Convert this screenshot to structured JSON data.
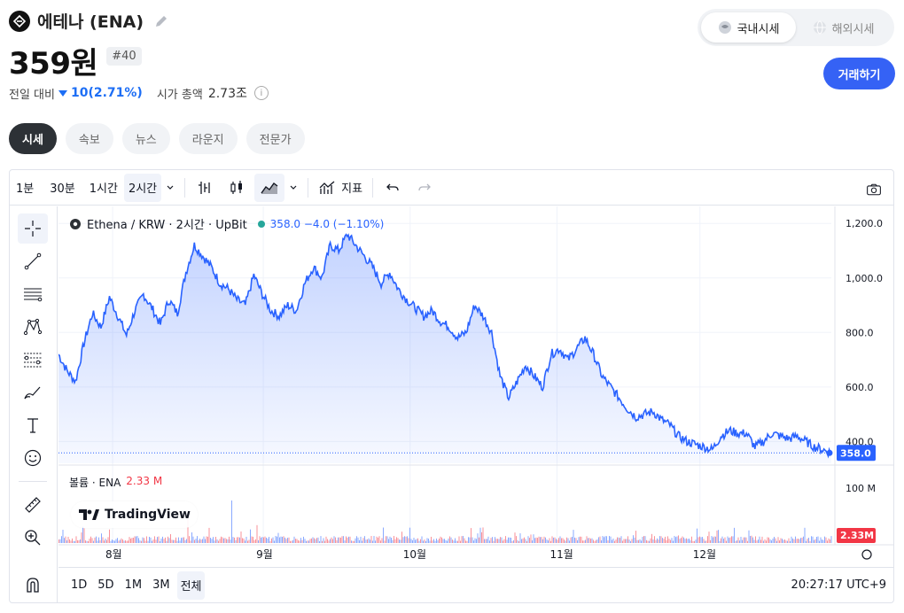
{
  "header": {
    "coin_name": "에테나 (ENA)",
    "price": "359원",
    "rank": "#40",
    "change_label": "전일 대비",
    "change_value": "10(2.71%)",
    "mcap_label": "시가 총액",
    "mcap_value": "2.73조",
    "info_icon": "i"
  },
  "market_toggle": {
    "domestic": "국내시세",
    "overseas": "해외시세"
  },
  "trade_button": "거래하기",
  "tabs": [
    {
      "label": "시세"
    },
    {
      "label": "속보"
    },
    {
      "label": "뉴스"
    },
    {
      "label": "라운지"
    },
    {
      "label": "전문가"
    }
  ],
  "toolbar": {
    "intervals": [
      "1분",
      "30분",
      "1시간",
      "2시간"
    ],
    "indicators_label": "지표"
  },
  "legend": {
    "symbol": "Ethena / KRW · 2시간 · UpBit",
    "values": "358.0  −4.0 (−1.10%)"
  },
  "volume_legend": {
    "label": "볼륨 · ENA",
    "value": "2.33 M"
  },
  "tradingview_label": "TradingView",
  "ranges": [
    "1D",
    "5D",
    "1M",
    "3M",
    "전체"
  ],
  "clock": "20:27:17 UTC+9",
  "colors": {
    "line": "#2962ff",
    "accent": "#3562f5",
    "up": "#f23645",
    "down": "#1d6ef5"
  },
  "chart_data": {
    "type": "area",
    "x_tick_labels": [
      "8월",
      "9월",
      "10월",
      "11월",
      "12월"
    ],
    "y_tick_labels": [
      "1,200.0",
      "1,000.0",
      "800.0",
      "600.0",
      "400.0"
    ],
    "ylim": [
      320,
      1230
    ],
    "last_price_label": "358.0",
    "volume_axis_label": "100 M",
    "volume_last_label": "2.33M",
    "series": [
      {
        "values": [
          720,
          660,
          620,
          760,
          870,
          820,
          930,
          860,
          790,
          880,
          940,
          890,
          830,
          920,
          870,
          1020,
          1120,
          1080,
          1040,
          980,
          960,
          920,
          900,
          1010,
          940,
          880,
          860,
          900,
          880,
          980,
          1040,
          1000,
          1120,
          1100,
          1160,
          1120,
          1080,
          1040,
          980,
          1020,
          960,
          920,
          890,
          860,
          880,
          840,
          820,
          780,
          800,
          900,
          860,
          800,
          640,
          560,
          620,
          680,
          640,
          600,
          720,
          740,
          700,
          740,
          780,
          720,
          640,
          600,
          560,
          520,
          490,
          500,
          510,
          480,
          460,
          420,
          400,
          390,
          380,
          370,
          420,
          440,
          430,
          430,
          380,
          400,
          430,
          420,
          410,
          420,
          400,
          380,
          370,
          358
        ]
      }
    ]
  }
}
